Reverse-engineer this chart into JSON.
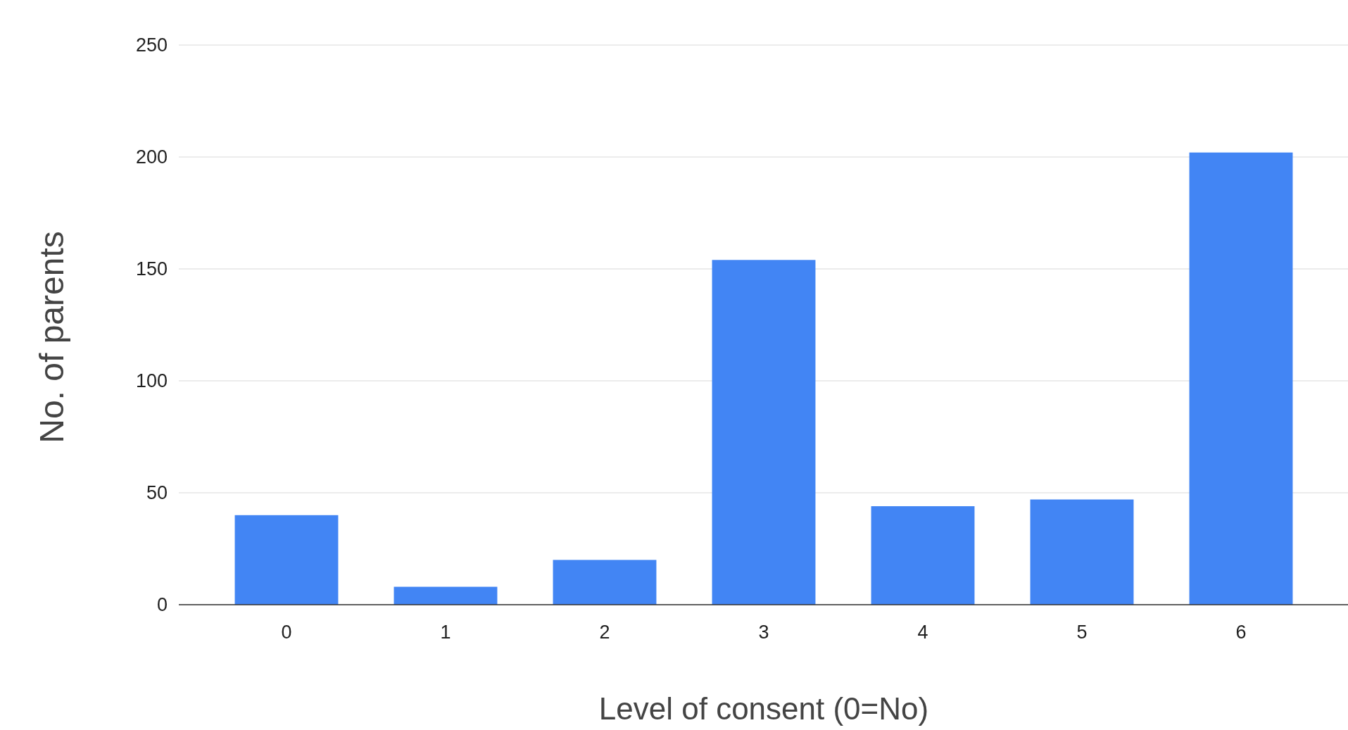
{
  "chart_data": {
    "type": "bar",
    "xlabel": "Level of consent (0=No)",
    "ylabel": "No. of parents",
    "categories": [
      "0",
      "1",
      "2",
      "3",
      "4",
      "5",
      "6"
    ],
    "values": [
      40,
      8,
      20,
      154,
      44,
      47,
      202
    ],
    "color": "#4285f4",
    "ylim": [
      0,
      250
    ],
    "yticks": [
      0,
      50,
      100,
      150,
      200,
      250
    ],
    "grid": "y"
  }
}
